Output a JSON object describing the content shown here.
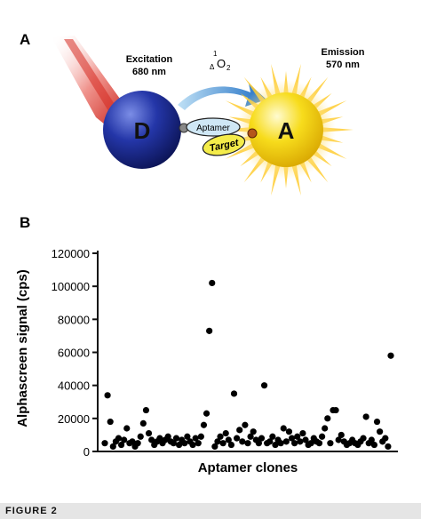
{
  "panel_a": {
    "label": "A",
    "excitation_label": "Excitation",
    "excitation_value": "680 nm",
    "singlet_oxygen_sup": "1",
    "singlet_oxygen_sub": "Δ",
    "singlet_oxygen_main": "O",
    "singlet_oxygen_sub2": "2",
    "emission_label": "Emission",
    "emission_value": "570 nm",
    "donor_label": "D",
    "acceptor_label": "A",
    "aptamer_label": "Aptamer",
    "target_label": "Target",
    "colors": {
      "donor": "#1c2a8c",
      "acceptor": "#f2d20a",
      "glow": "#ffcc33",
      "laser": "#d8281e",
      "arrow": "#2a7fd0",
      "aptamer_fill": "#cfe7f5",
      "target_fill": "#f4ec4a"
    }
  },
  "panel_b_label": "B",
  "caption": "FIGURE 2",
  "chart_data": {
    "type": "scatter",
    "title": "",
    "xlabel": "Aptamer clones",
    "ylabel": "Alphascreen signal (cps)",
    "ylim": [
      0,
      120000
    ],
    "yticks": [
      0,
      20000,
      40000,
      60000,
      80000,
      100000,
      120000
    ],
    "ytick_labels": [
      "0",
      "20000",
      "40000",
      "60000",
      "80000",
      "100000",
      "120000"
    ],
    "grid": false,
    "marker_color": "#000000",
    "points": [
      {
        "x": 1,
        "y": 5000
      },
      {
        "x": 2,
        "y": 34000
      },
      {
        "x": 3,
        "y": 18000
      },
      {
        "x": 4,
        "y": 3000
      },
      {
        "x": 5,
        "y": 6000
      },
      {
        "x": 6,
        "y": 8000
      },
      {
        "x": 7,
        "y": 4000
      },
      {
        "x": 8,
        "y": 7000
      },
      {
        "x": 9,
        "y": 14000
      },
      {
        "x": 10,
        "y": 5000
      },
      {
        "x": 11,
        "y": 6000
      },
      {
        "x": 12,
        "y": 3000
      },
      {
        "x": 13,
        "y": 5000
      },
      {
        "x": 14,
        "y": 9000
      },
      {
        "x": 15,
        "y": 17000
      },
      {
        "x": 16,
        "y": 25000
      },
      {
        "x": 17,
        "y": 11000
      },
      {
        "x": 18,
        "y": 7000
      },
      {
        "x": 19,
        "y": 4000
      },
      {
        "x": 20,
        "y": 6000
      },
      {
        "x": 21,
        "y": 8000
      },
      {
        "x": 22,
        "y": 5000
      },
      {
        "x": 23,
        "y": 7000
      },
      {
        "x": 24,
        "y": 9000
      },
      {
        "x": 25,
        "y": 6000
      },
      {
        "x": 26,
        "y": 5000
      },
      {
        "x": 27,
        "y": 8000
      },
      {
        "x": 28,
        "y": 4000
      },
      {
        "x": 29,
        "y": 7000
      },
      {
        "x": 30,
        "y": 5000
      },
      {
        "x": 31,
        "y": 9000
      },
      {
        "x": 32,
        "y": 6000
      },
      {
        "x": 33,
        "y": 4000
      },
      {
        "x": 34,
        "y": 8000
      },
      {
        "x": 35,
        "y": 5000
      },
      {
        "x": 36,
        "y": 9000
      },
      {
        "x": 37,
        "y": 16000
      },
      {
        "x": 38,
        "y": 23000
      },
      {
        "x": 39,
        "y": 73000
      },
      {
        "x": 40,
        "y": 102000
      },
      {
        "x": 41,
        "y": 3000
      },
      {
        "x": 42,
        "y": 6000
      },
      {
        "x": 43,
        "y": 9000
      },
      {
        "x": 44,
        "y": 5000
      },
      {
        "x": 45,
        "y": 11000
      },
      {
        "x": 46,
        "y": 7000
      },
      {
        "x": 47,
        "y": 4000
      },
      {
        "x": 48,
        "y": 35000
      },
      {
        "x": 49,
        "y": 8000
      },
      {
        "x": 50,
        "y": 13000
      },
      {
        "x": 51,
        "y": 6000
      },
      {
        "x": 52,
        "y": 16000
      },
      {
        "x": 53,
        "y": 5000
      },
      {
        "x": 54,
        "y": 9000
      },
      {
        "x": 55,
        "y": 12000
      },
      {
        "x": 56,
        "y": 7000
      },
      {
        "x": 57,
        "y": 5000
      },
      {
        "x": 58,
        "y": 8000
      },
      {
        "x": 59,
        "y": 40000
      },
      {
        "x": 60,
        "y": 5000
      },
      {
        "x": 61,
        "y": 6000
      },
      {
        "x": 62,
        "y": 9000
      },
      {
        "x": 63,
        "y": 4000
      },
      {
        "x": 64,
        "y": 7000
      },
      {
        "x": 65,
        "y": 5000
      },
      {
        "x": 66,
        "y": 14000
      },
      {
        "x": 67,
        "y": 6000
      },
      {
        "x": 68,
        "y": 12000
      },
      {
        "x": 69,
        "y": 8000
      },
      {
        "x": 70,
        "y": 5000
      },
      {
        "x": 71,
        "y": 9000
      },
      {
        "x": 72,
        "y": 6000
      },
      {
        "x": 73,
        "y": 11000
      },
      {
        "x": 74,
        "y": 7000
      },
      {
        "x": 75,
        "y": 4000
      },
      {
        "x": 76,
        "y": 5000
      },
      {
        "x": 77,
        "y": 8000
      },
      {
        "x": 78,
        "y": 6000
      },
      {
        "x": 79,
        "y": 5000
      },
      {
        "x": 80,
        "y": 9000
      },
      {
        "x": 81,
        "y": 14000
      },
      {
        "x": 82,
        "y": 20000
      },
      {
        "x": 83,
        "y": 5000
      },
      {
        "x": 84,
        "y": 25000
      },
      {
        "x": 85,
        "y": 25000
      },
      {
        "x": 86,
        "y": 7000
      },
      {
        "x": 87,
        "y": 10000
      },
      {
        "x": 88,
        "y": 6000
      },
      {
        "x": 89,
        "y": 4000
      },
      {
        "x": 90,
        "y": 5000
      },
      {
        "x": 91,
        "y": 7000
      },
      {
        "x": 92,
        "y": 5000
      },
      {
        "x": 93,
        "y": 4000
      },
      {
        "x": 94,
        "y": 6000
      },
      {
        "x": 95,
        "y": 8000
      },
      {
        "x": 96,
        "y": 21000
      },
      {
        "x": 97,
        "y": 5000
      },
      {
        "x": 98,
        "y": 7000
      },
      {
        "x": 99,
        "y": 4000
      },
      {
        "x": 100,
        "y": 18000
      },
      {
        "x": 101,
        "y": 12000
      },
      {
        "x": 102,
        "y": 6000
      },
      {
        "x": 103,
        "y": 8000
      },
      {
        "x": 104,
        "y": 3000
      },
      {
        "x": 105,
        "y": 58000
      }
    ]
  }
}
